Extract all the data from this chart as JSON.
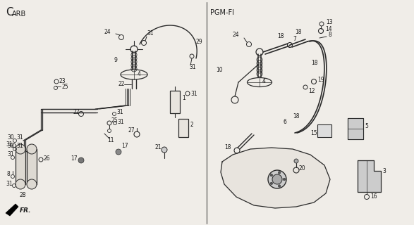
{
  "bg_color": "#f0ede8",
  "line_color": "#2a2a2a",
  "text_color": "#1a1a1a",
  "carb_label_C": "C",
  "carb_label_ARB": "ARB",
  "pgmfi_label": "PGM-FI",
  "fr_label": "FR.",
  "fig_width": 5.87,
  "fig_height": 3.2,
  "dpi": 100
}
